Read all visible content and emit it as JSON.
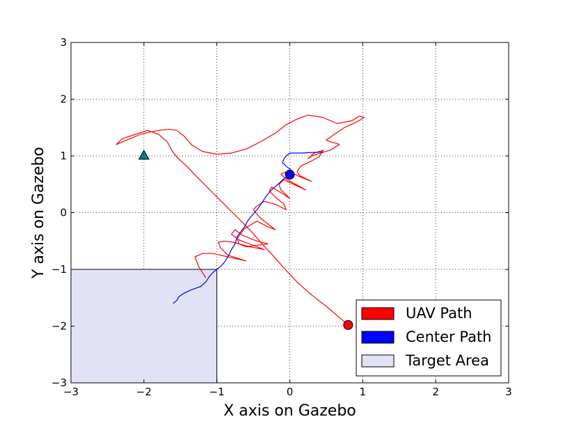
{
  "chart_data": {
    "type": "line",
    "title": "",
    "xlabel": "X axis on Gazebo",
    "ylabel": "Y axis on Gazebo",
    "xlim": [
      -3,
      3
    ],
    "ylim": [
      -3,
      3
    ],
    "xticks": [
      -3,
      -2,
      -1,
      0,
      1,
      2,
      3
    ],
    "yticks": [
      -3,
      -2,
      -1,
      0,
      1,
      2,
      3
    ],
    "xtick_labels": [
      "−3",
      "−2",
      "−1",
      "0",
      "1",
      "2",
      "3"
    ],
    "ytick_labels": [
      "−3",
      "−2",
      "−1",
      "0",
      "1",
      "2",
      "3"
    ],
    "grid": true,
    "grid_style": "dotted",
    "legend_position": "lower-right",
    "target_area": {
      "name": "Target Area",
      "x": [
        -3,
        -1
      ],
      "y": [
        -3,
        -1
      ],
      "color": "#e2e2f7"
    },
    "series": [
      {
        "name": "UAV Path",
        "color": "#ff0000",
        "x": [
          0.8,
          0.68,
          0.5,
          0.3,
          0.12,
          -0.05,
          -0.2,
          -0.38,
          -0.55,
          -0.72,
          -0.9,
          -1.08,
          -1.25,
          -1.4,
          -1.55,
          -1.62,
          -1.68,
          -1.8,
          -1.95,
          -2.12,
          -2.3,
          -2.38,
          -2.2,
          -2.05,
          -1.92,
          -1.8,
          -1.65,
          -1.55,
          -1.45,
          -1.35,
          -1.2,
          -1.0,
          -0.8,
          -0.6,
          -0.4,
          -0.2,
          -0.05,
          0.1,
          0.25,
          0.45,
          0.65,
          0.85,
          0.95,
          1.02,
          0.95,
          0.75,
          0.6,
          0.5,
          0.55,
          0.65,
          0.68,
          0.55,
          0.42,
          0.3,
          0.25,
          0.33,
          0.46,
          0.4,
          0.28,
          0.15,
          0.1,
          0.14,
          0.3,
          0.2,
          0.06,
          -0.05,
          -0.12,
          -0.06,
          0.08,
          0.22,
          0.05,
          -0.08,
          -0.15,
          -0.12,
          0.0,
          0.0,
          -0.12,
          -0.25,
          -0.28,
          -0.2,
          -0.08,
          -0.05,
          -0.2,
          -0.35,
          -0.45,
          -0.5,
          -0.4,
          -0.2,
          -0.3,
          -0.45,
          -0.62,
          -0.72,
          -0.7,
          -0.6,
          -0.3,
          -0.45,
          -0.65,
          -0.75,
          -0.8,
          -0.7,
          -0.35,
          -0.55,
          -0.78,
          -0.9,
          -0.98,
          -0.95,
          -0.85,
          -0.6,
          -0.85,
          -1.05,
          -1.2,
          -1.3,
          -1.25,
          -1.15
        ],
        "y": [
          -1.98,
          -1.85,
          -1.65,
          -1.45,
          -1.25,
          -1.02,
          -0.8,
          -0.55,
          -0.3,
          -0.08,
          0.15,
          0.38,
          0.6,
          0.8,
          0.98,
          1.1,
          1.25,
          1.38,
          1.45,
          1.38,
          1.3,
          1.2,
          1.3,
          1.38,
          1.42,
          1.45,
          1.47,
          1.45,
          1.35,
          1.2,
          1.08,
          1.03,
          1.05,
          1.12,
          1.25,
          1.4,
          1.55,
          1.65,
          1.72,
          1.68,
          1.57,
          1.62,
          1.7,
          1.68,
          1.62,
          1.5,
          1.37,
          1.28,
          1.25,
          1.22,
          1.2,
          1.1,
          1.05,
          1.0,
          0.95,
          1.05,
          1.1,
          0.98,
          0.9,
          0.82,
          0.72,
          0.65,
          0.55,
          0.6,
          0.68,
          0.72,
          0.68,
          0.6,
          0.5,
          0.4,
          0.5,
          0.58,
          0.5,
          0.4,
          0.25,
          0.25,
          0.35,
          0.45,
          0.38,
          0.28,
          0.15,
          0.05,
          0.15,
          0.2,
          0.12,
          0.05,
          -0.1,
          -0.3,
          -0.25,
          -0.15,
          -0.28,
          -0.45,
          -0.55,
          -0.6,
          -0.55,
          -0.5,
          -0.4,
          -0.3,
          -0.38,
          -0.48,
          -0.65,
          -0.6,
          -0.52,
          -0.5,
          -0.52,
          -0.62,
          -0.75,
          -0.85,
          -0.78,
          -0.72,
          -0.72,
          -0.78,
          -0.95,
          -1.15
        ]
      },
      {
        "name": "Center Path",
        "color": "#0000ff",
        "x": [
          -1.6,
          -1.55,
          -1.52,
          -1.45,
          -1.35,
          -1.22,
          -1.15,
          -1.1,
          -1.05,
          -1.0,
          -0.95,
          -0.9,
          -0.85,
          -0.8,
          -0.75,
          -0.72,
          -0.68,
          -0.62,
          -0.58,
          -0.52,
          -0.45,
          -0.38,
          -0.32,
          -0.25,
          -0.18,
          -0.12,
          -0.06,
          0.0,
          0.02,
          -0.05,
          -0.1,
          -0.08,
          -0.05,
          0.0,
          0.05,
          0.15,
          0.3,
          0.45
        ],
        "y": [
          -1.6,
          -1.55,
          -1.48,
          -1.42,
          -1.36,
          -1.3,
          -1.22,
          -1.12,
          -1.05,
          -1.0,
          -0.95,
          -0.88,
          -0.78,
          -0.65,
          -0.55,
          -0.42,
          -0.35,
          -0.25,
          -0.15,
          -0.05,
          0.05,
          0.18,
          0.3,
          0.4,
          0.48,
          0.55,
          0.62,
          0.67,
          0.75,
          0.82,
          0.88,
          0.95,
          1.0,
          1.05,
          1.05,
          1.05,
          1.06,
          1.07
        ]
      }
    ],
    "markers": [
      {
        "name": "uav-start-marker",
        "shape": "circle",
        "x": 0.8,
        "y": -1.98,
        "color": "#ff0000"
      },
      {
        "name": "center-marker",
        "shape": "circle",
        "x": 0.0,
        "y": 0.67,
        "color": "#0000ff"
      },
      {
        "name": "goal-marker",
        "shape": "triangle",
        "x": -2.0,
        "y": 1.0,
        "color": "#007f7f"
      }
    ],
    "legend": [
      {
        "label": "UAV Path",
        "color": "#ff0000"
      },
      {
        "label": "Center Path",
        "color": "#0000ff"
      },
      {
        "label": "Target Area",
        "color": "#e2e2f7"
      }
    ]
  }
}
